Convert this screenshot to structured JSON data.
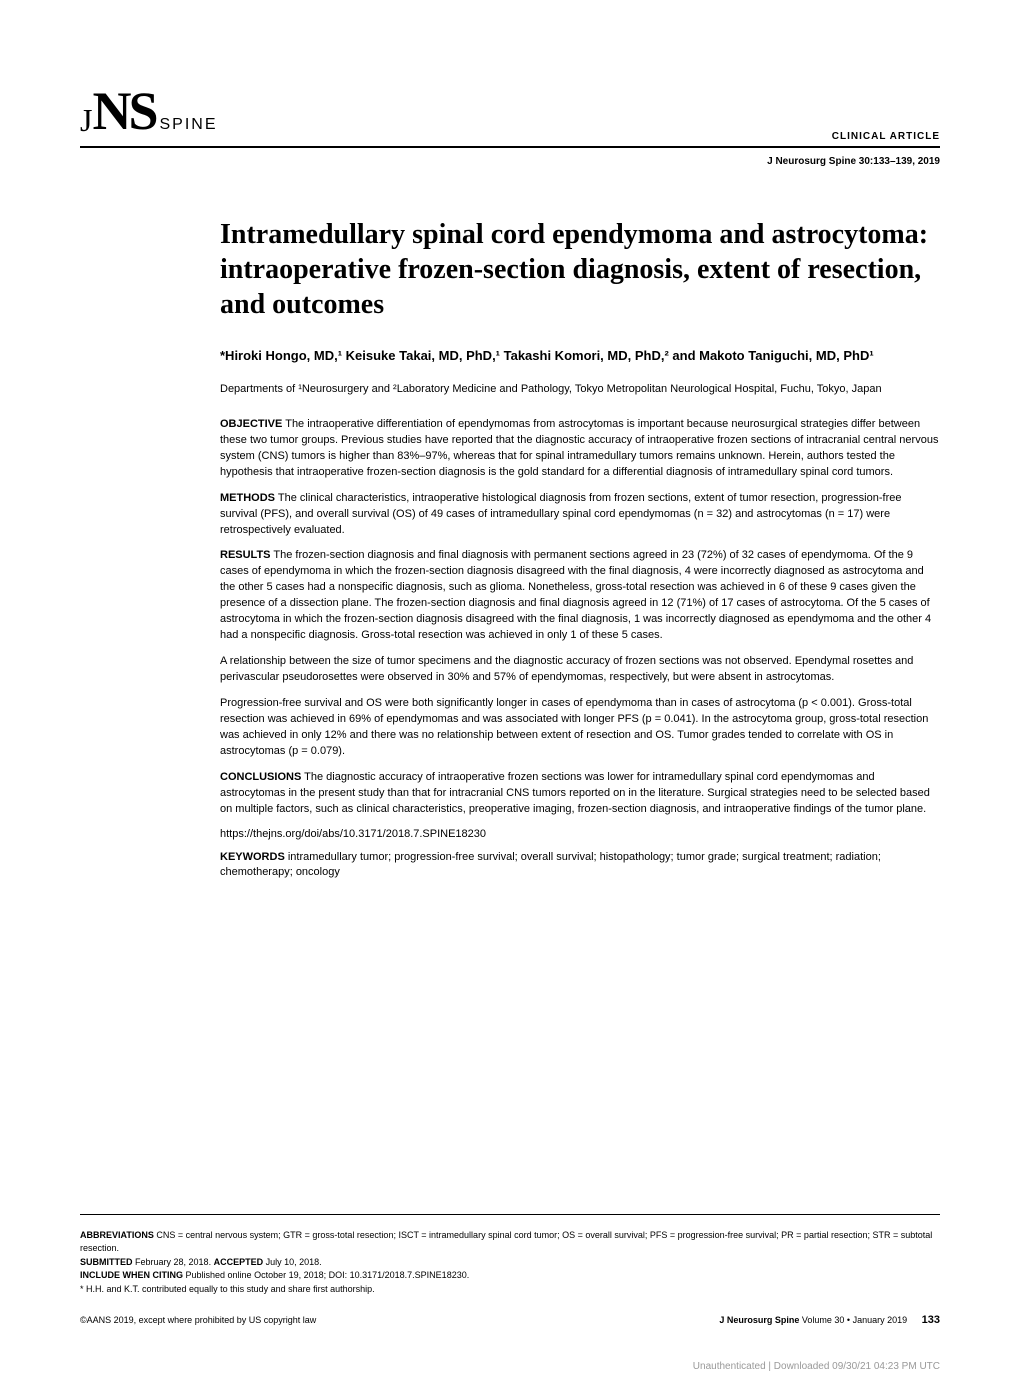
{
  "header": {
    "logo_jns": "JNS",
    "logo_spine": "SPINE",
    "article_type": "CLINICAL ARTICLE",
    "citation": "J Neurosurg Spine 30:133–139, 2019"
  },
  "article": {
    "title": "Intramedullary spinal cord ependymoma and astrocytoma: intraoperative frozen-section diagnosis, extent of resection, and outcomes",
    "authors": "*Hiroki Hongo, MD,¹ Keisuke Takai, MD, PhD,¹ Takashi Komori, MD, PhD,² and Makoto Taniguchi, MD, PhD¹",
    "affiliations": "Departments of ¹Neurosurgery and ²Laboratory Medicine and Pathology, Tokyo Metropolitan Neurological Hospital, Fuchu, Tokyo, Japan",
    "abstract": {
      "objective_label": "OBJECTIVE",
      "objective": "The intraoperative differentiation of ependymomas from astrocytomas is important because neurosurgical strategies differ between these two tumor groups. Previous studies have reported that the diagnostic accuracy of intraoperative frozen sections of intracranial central nervous system (CNS) tumors is higher than 83%–97%, whereas that for spinal intramedullary tumors remains unknown. Herein, authors tested the hypothesis that intraoperative frozen-section diagnosis is the gold standard for a differential diagnosis of intramedullary spinal cord tumors.",
      "methods_label": "METHODS",
      "methods": "The clinical characteristics, intraoperative histological diagnosis from frozen sections, extent of tumor resection, progression-free survival (PFS), and overall survival (OS) of 49 cases of intramedullary spinal cord ependymomas (n = 32) and astrocytomas (n = 17) were retrospectively evaluated.",
      "results_label": "RESULTS",
      "results_p1": "The frozen-section diagnosis and final diagnosis with permanent sections agreed in 23 (72%) of 32 cases of ependymoma. Of the 9 cases of ependymoma in which the frozen-section diagnosis disagreed with the final diagnosis, 4 were incorrectly diagnosed as astrocytoma and the other 5 cases had a nonspecific diagnosis, such as glioma. Nonetheless, gross-total resection was achieved in 6 of these 9 cases given the presence of a dissection plane. The frozen-section diagnosis and final diagnosis agreed in 12 (71%) of 17 cases of astrocytoma. Of the 5 cases of astrocytoma in which the frozen-section diagnosis disagreed with the final diagnosis, 1 was incorrectly diagnosed as ependymoma and the other 4 had a nonspecific diagnosis. Gross-total resection was achieved in only 1 of these 5 cases.",
      "results_p2": "A relationship between the size of tumor specimens and the diagnostic accuracy of frozen sections was not observed. Ependymal rosettes and perivascular pseudorosettes were observed in 30% and 57% of ependymomas, respectively, but were absent in astrocytomas.",
      "results_p3": "Progression-free survival and OS were both significantly longer in cases of ependymoma than in cases of astrocytoma (p < 0.001). Gross-total resection was achieved in 69% of ependymomas and was associated with longer PFS (p = 0.041). In the astrocytoma group, gross-total resection was achieved in only 12% and there was no relationship between extent of resection and OS. Tumor grades tended to correlate with OS in astrocytomas (p = 0.079).",
      "conclusions_label": "CONCLUSIONS",
      "conclusions": "The diagnostic accuracy of intraoperative frozen sections was lower for intramedullary spinal cord ependymomas and astrocytomas in the present study than that for intracranial CNS tumors reported on in the literature. Surgical strategies need to be selected based on multiple factors, such as clinical characteristics, preoperative imaging, frozen-section diagnosis, and intraoperative findings of the tumor plane."
    },
    "doi": "https://thejns.org/doi/abs/10.3171/2018.7.SPINE18230",
    "keywords_label": "KEYWORDS",
    "keywords": "intramedullary tumor; progression-free survival; overall survival; histopathology; tumor grade; surgical treatment; radiation; chemotherapy; oncology"
  },
  "meta": {
    "abbreviations_label": "ABBREVIATIONS",
    "abbreviations": "CNS = central nervous system; GTR = gross-total resection; ISCT = intramedullary spinal cord tumor; OS = overall survival; PFS = progression-free survival; PR = partial resection; STR = subtotal resection.",
    "submitted_label": "SUBMITTED",
    "submitted": "February 28, 2018.",
    "accepted_label": "ACCEPTED",
    "accepted": "July 10, 2018.",
    "citing_label": "INCLUDE WHEN CITING",
    "citing": "Published online October 19, 2018; DOI: 10.3171/2018.7.SPINE18230.",
    "author_note": "* H.H. and K.T. contributed equally to this study and share first authorship."
  },
  "footer": {
    "copyright": "©AANS 2019, except where prohibited by US copyright law",
    "journal": "J Neurosurg Spine",
    "volume": "Volume 30 • January 2019",
    "page": "133",
    "watermark": "Unauthenticated | Downloaded 09/30/21 04:23 PM UTC"
  },
  "colors": {
    "text": "#000000",
    "background": "#ffffff",
    "watermark": "#999999",
    "rule": "#000000"
  },
  "typography": {
    "title_font": "Georgia, serif",
    "body_font": "Arial, Helvetica, sans-serif",
    "title_size": 28,
    "body_size": 11,
    "meta_size": 9,
    "logo_size": 54
  }
}
